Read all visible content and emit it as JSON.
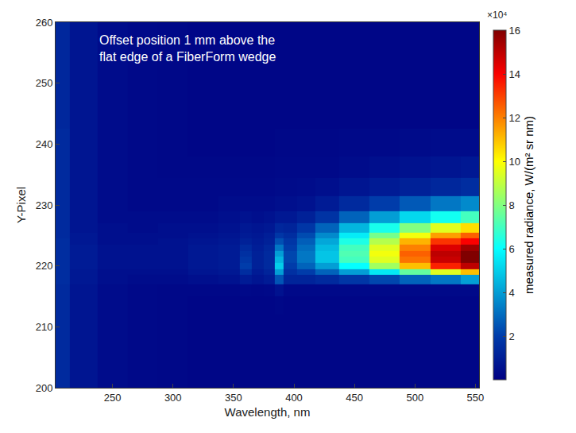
{
  "chart_data": {
    "type": "heatmap",
    "annotation": "Offset position 1 mm above the flat edge of a FiberForm wedge",
    "x_label": "Wavelength, nm",
    "y_label": "Y-Pixel",
    "z_label": "measured radiance, W/(m² sr nm)",
    "zticks_multiplier": "×10⁴",
    "xlim": [
      203,
      553
    ],
    "xticks": [
      250,
      300,
      350,
      400,
      450,
      500,
      550
    ],
    "ylim": [
      200,
      260
    ],
    "yticks": [
      200,
      210,
      220,
      230,
      240,
      250,
      260
    ],
    "zlim": [
      0,
      160000
    ],
    "zticks": [
      {
        "value": 20000,
        "label": "2"
      },
      {
        "value": 40000,
        "label": "4"
      },
      {
        "value": 60000,
        "label": "6"
      },
      {
        "value": 80000,
        "label": "8"
      },
      {
        "value": 100000,
        "label": "10"
      },
      {
        "value": 120000,
        "label": "12"
      },
      {
        "value": 140000,
        "label": "14"
      },
      {
        "value": 160000,
        "label": "16"
      }
    ],
    "x": [
      205,
      225,
      250,
      275,
      300,
      325,
      350,
      360,
      370,
      380,
      388,
      395,
      410,
      425,
      450,
      475,
      500,
      525,
      550
    ],
    "y": [
      200,
      205,
      210,
      214,
      216,
      218,
      219,
      220,
      221,
      222,
      223,
      224,
      225,
      226,
      228,
      230,
      233,
      236,
      240,
      245,
      250,
      255,
      260
    ],
    "z": [
      [
        14000,
        7000,
        4000,
        3000,
        2500,
        2000,
        2000,
        2000,
        2000,
        2000,
        2000,
        2000,
        2000,
        2000,
        2000,
        2000,
        2000,
        2000,
        2000
      ],
      [
        14000,
        7000,
        4000,
        3000,
        2500,
        2000,
        2000,
        2000,
        2000,
        2000,
        2000,
        2000,
        2000,
        2000,
        2000,
        2000,
        2000,
        2000,
        2000
      ],
      [
        14000,
        7000,
        4000,
        3000,
        2500,
        2000,
        2000,
        2000,
        2000,
        2000,
        2000,
        2000,
        2000,
        2000,
        2000,
        2000,
        2000,
        2000,
        2000
      ],
      [
        14000,
        7000,
        4000,
        3000,
        2500,
        2000,
        2000,
        2000,
        2000,
        2000,
        2500,
        2000,
        2000,
        2000,
        2000,
        2000,
        2000,
        2000,
        2000
      ],
      [
        14000,
        7000,
        4000,
        3000,
        2500,
        2500,
        2500,
        3000,
        2500,
        3000,
        6000,
        3000,
        3000,
        3000,
        3000,
        3000,
        3000,
        3000,
        3000
      ],
      [
        15000,
        8000,
        5000,
        4000,
        4000,
        5000,
        6000,
        9000,
        7000,
        9000,
        25000,
        12000,
        12000,
        14000,
        18000,
        22000,
        28000,
        32000,
        40000
      ],
      [
        15000,
        8000,
        5000,
        5000,
        5000,
        7000,
        8000,
        15000,
        9000,
        12000,
        40000,
        16000,
        20000,
        28000,
        40000,
        55000,
        75000,
        95000,
        110000
      ],
      [
        15000,
        9000,
        6000,
        6000,
        6000,
        8000,
        9000,
        20000,
        11000,
        14000,
        50000,
        20000,
        28000,
        40000,
        60000,
        85000,
        110000,
        135000,
        150000
      ],
      [
        15000,
        9000,
        6000,
        6000,
        6000,
        8000,
        9000,
        18000,
        11000,
        14000,
        45000,
        22000,
        32000,
        48000,
        70000,
        95000,
        122000,
        148000,
        160000
      ],
      [
        15000,
        9000,
        6000,
        6000,
        6000,
        8000,
        9000,
        16000,
        11000,
        14000,
        40000,
        22000,
        32000,
        48000,
        72000,
        98000,
        125000,
        150000,
        160000
      ],
      [
        15000,
        9000,
        6000,
        6000,
        6000,
        8000,
        9000,
        14000,
        10000,
        13000,
        32000,
        20000,
        30000,
        46000,
        70000,
        95000,
        120000,
        145000,
        155000
      ],
      [
        15000,
        8000,
        5000,
        5000,
        6000,
        7000,
        8000,
        11000,
        9000,
        11000,
        24000,
        18000,
        27000,
        42000,
        64000,
        88000,
        112000,
        132000,
        140000
      ],
      [
        14000,
        8000,
        5000,
        5000,
        5000,
        6000,
        7000,
        9000,
        8000,
        10000,
        18000,
        15000,
        23000,
        36000,
        56000,
        78000,
        98000,
        115000,
        125000
      ],
      [
        14000,
        7000,
        5000,
        4000,
        5000,
        5000,
        6000,
        8000,
        7000,
        8000,
        13000,
        12000,
        18000,
        28000,
        45000,
        63000,
        80000,
        95000,
        105000
      ],
      [
        14000,
        7000,
        4000,
        4000,
        4000,
        4000,
        5000,
        6000,
        5000,
        6000,
        8000,
        8000,
        11000,
        17000,
        28000,
        40000,
        52000,
        62000,
        70000
      ],
      [
        14000,
        7000,
        4000,
        3000,
        3000,
        3000,
        4000,
        4000,
        4000,
        4000,
        5000,
        5000,
        6000,
        9000,
        14000,
        20000,
        26000,
        32000,
        36000
      ],
      [
        14000,
        7000,
        4000,
        3000,
        3000,
        3000,
        3000,
        3000,
        3000,
        3000,
        3500,
        3500,
        4000,
        5000,
        7000,
        9000,
        11000,
        13000,
        15000
      ],
      [
        14000,
        7000,
        4000,
        3000,
        2500,
        2500,
        2500,
        2500,
        2500,
        2500,
        3000,
        3000,
        3000,
        3000,
        4000,
        5000,
        6000,
        7000,
        8000
      ],
      [
        14000,
        7000,
        4000,
        3000,
        2500,
        2000,
        2000,
        2000,
        2000,
        2000,
        2500,
        2500,
        2500,
        2500,
        3000,
        3000,
        3500,
        4000,
        4000
      ],
      [
        13000,
        7000,
        4000,
        3000,
        2500,
        2000,
        2000,
        2000,
        2000,
        2000,
        2000,
        2000,
        2000,
        2000,
        2000,
        2000,
        2000,
        2000,
        2000
      ],
      [
        13000,
        7000,
        4000,
        3000,
        2500,
        2000,
        2000,
        2000,
        2000,
        2000,
        2000,
        2000,
        2000,
        2000,
        2000,
        2000,
        2000,
        2000,
        2000
      ],
      [
        13000,
        7000,
        4000,
        3000,
        2500,
        2000,
        2000,
        2000,
        2000,
        2000,
        2000,
        2000,
        2000,
        2000,
        2000,
        2000,
        2000,
        2000,
        2000
      ],
      [
        13000,
        7000,
        4000,
        3000,
        2500,
        2000,
        2000,
        2000,
        2000,
        2000,
        2000,
        2000,
        2000,
        2000,
        2000,
        2000,
        2000,
        2000,
        2000
      ]
    ]
  }
}
